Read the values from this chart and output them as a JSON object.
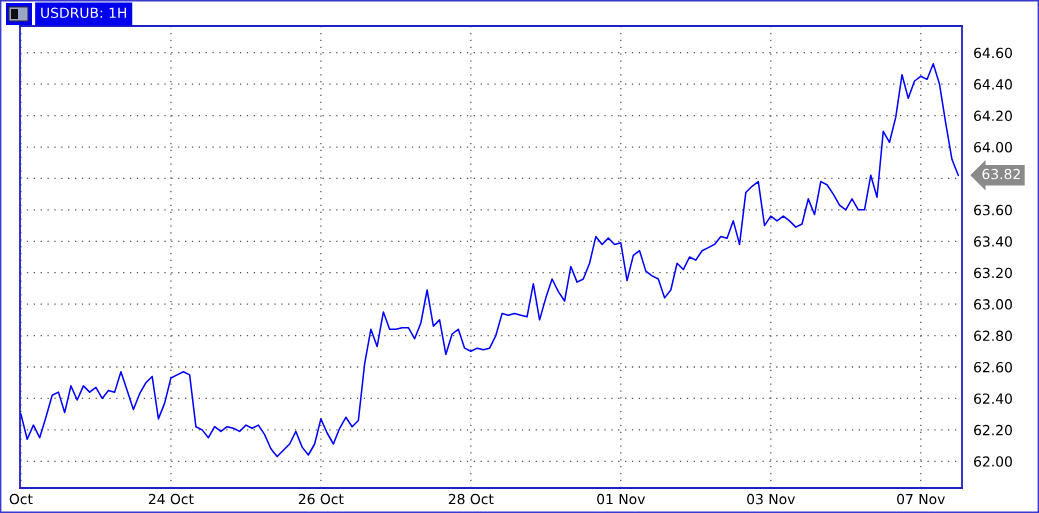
{
  "chart_data": {
    "type": "line",
    "title": "USDRUB: 1H",
    "categories": [
      "Oct",
      null,
      null,
      null,
      null,
      null,
      null,
      null,
      null,
      null,
      null,
      null,
      null,
      null,
      null,
      null,
      null,
      null,
      null,
      null,
      null,
      null,
      null,
      null,
      "24 Oct",
      null,
      null,
      null,
      null,
      null,
      null,
      null,
      null,
      null,
      null,
      null,
      null,
      null,
      null,
      null,
      null,
      null,
      null,
      null,
      null,
      null,
      null,
      null,
      "26 Oct",
      null,
      null,
      null,
      null,
      null,
      null,
      null,
      null,
      null,
      null,
      null,
      null,
      null,
      null,
      null,
      null,
      null,
      null,
      null,
      null,
      null,
      null,
      null,
      "28 Oct",
      null,
      null,
      null,
      null,
      null,
      null,
      null,
      null,
      null,
      null,
      null,
      null,
      null,
      null,
      null,
      null,
      null,
      null,
      null,
      null,
      null,
      null,
      null,
      "01 Nov",
      null,
      null,
      null,
      null,
      null,
      null,
      null,
      null,
      null,
      null,
      null,
      null,
      null,
      null,
      null,
      null,
      null,
      null,
      null,
      null,
      null,
      null,
      null,
      "03 Nov",
      null,
      null,
      null,
      null,
      null,
      null,
      null,
      null,
      null,
      null,
      null,
      null,
      null,
      null,
      null,
      null,
      null,
      null,
      null,
      null,
      null,
      null,
      null,
      "07 Nov",
      null,
      null,
      null,
      null,
      null,
      null
    ],
    "series": [
      {
        "color": "#0000ff",
        "values": [
          62.3,
          62.14,
          62.23,
          62.15,
          62.28,
          62.42,
          62.44,
          62.31,
          62.48,
          62.39,
          62.48,
          62.44,
          62.47,
          62.4,
          62.45,
          62.44,
          62.57,
          62.45,
          62.33,
          62.43,
          62.5,
          62.54,
          62.27,
          62.37,
          62.53,
          62.55,
          62.57,
          62.55,
          62.22,
          62.2,
          62.15,
          62.22,
          62.19,
          62.22,
          62.21,
          62.19,
          62.23,
          62.21,
          62.23,
          62.17,
          62.08,
          62.03,
          62.07,
          62.11,
          62.19,
          62.09,
          62.04,
          62.11,
          62.27,
          62.18,
          62.11,
          62.21,
          62.28,
          62.22,
          62.26,
          62.62,
          62.84,
          62.73,
          62.95,
          62.84,
          62.84,
          62.85,
          62.85,
          62.78,
          62.88,
          63.09,
          62.86,
          62.9,
          62.68,
          62.81,
          62.84,
          62.72,
          62.7,
          62.72,
          62.71,
          62.72,
          62.8,
          62.94,
          62.93,
          62.94,
          62.93,
          62.92,
          63.13,
          62.9,
          63.04,
          63.16,
          63.08,
          63.02,
          63.24,
          63.14,
          63.16,
          63.26,
          63.43,
          63.38,
          63.42,
          63.38,
          63.39,
          63.15,
          63.31,
          63.34,
          63.21,
          63.18,
          63.16,
          63.04,
          63.09,
          63.26,
          63.22,
          63.3,
          63.28,
          63.34,
          63.36,
          63.38,
          63.43,
          63.42,
          63.53,
          63.38,
          63.71,
          63.75,
          63.78,
          63.5,
          63.56,
          63.53,
          63.56,
          63.53,
          63.49,
          63.51,
          63.67,
          63.57,
          63.78,
          63.76,
          63.7,
          63.63,
          63.6,
          63.67,
          63.6,
          63.6,
          63.82,
          63.68,
          64.1,
          64.03,
          64.19,
          64.46,
          64.31,
          64.42,
          64.45,
          64.43,
          64.53,
          64.4,
          64.15,
          63.92,
          63.82
        ]
      }
    ],
    "ylim": [
      61.83,
      64.77
    ],
    "yticks": [
      {
        "value": 62.0,
        "label": "62.00"
      },
      {
        "value": 62.2,
        "label": "62.20"
      },
      {
        "value": 62.4,
        "label": "62.40"
      },
      {
        "value": 62.6,
        "label": "62.60"
      },
      {
        "value": 62.8,
        "label": "62.80"
      },
      {
        "value": 63.0,
        "label": "63.00"
      },
      {
        "value": 63.2,
        "label": "63.20"
      },
      {
        "value": 63.4,
        "label": "63.40"
      },
      {
        "value": 63.6,
        "label": "63.60"
      },
      {
        "value": 63.8,
        "label": null
      },
      {
        "value": 64.0,
        "label": "64.00"
      },
      {
        "value": 64.2,
        "label": "64.20"
      },
      {
        "value": 64.4,
        "label": "64.40"
      },
      {
        "value": 64.6,
        "label": "64.60"
      }
    ],
    "grid": true,
    "line_style": "solid",
    "annotations": [
      "63.82"
    ]
  }
}
